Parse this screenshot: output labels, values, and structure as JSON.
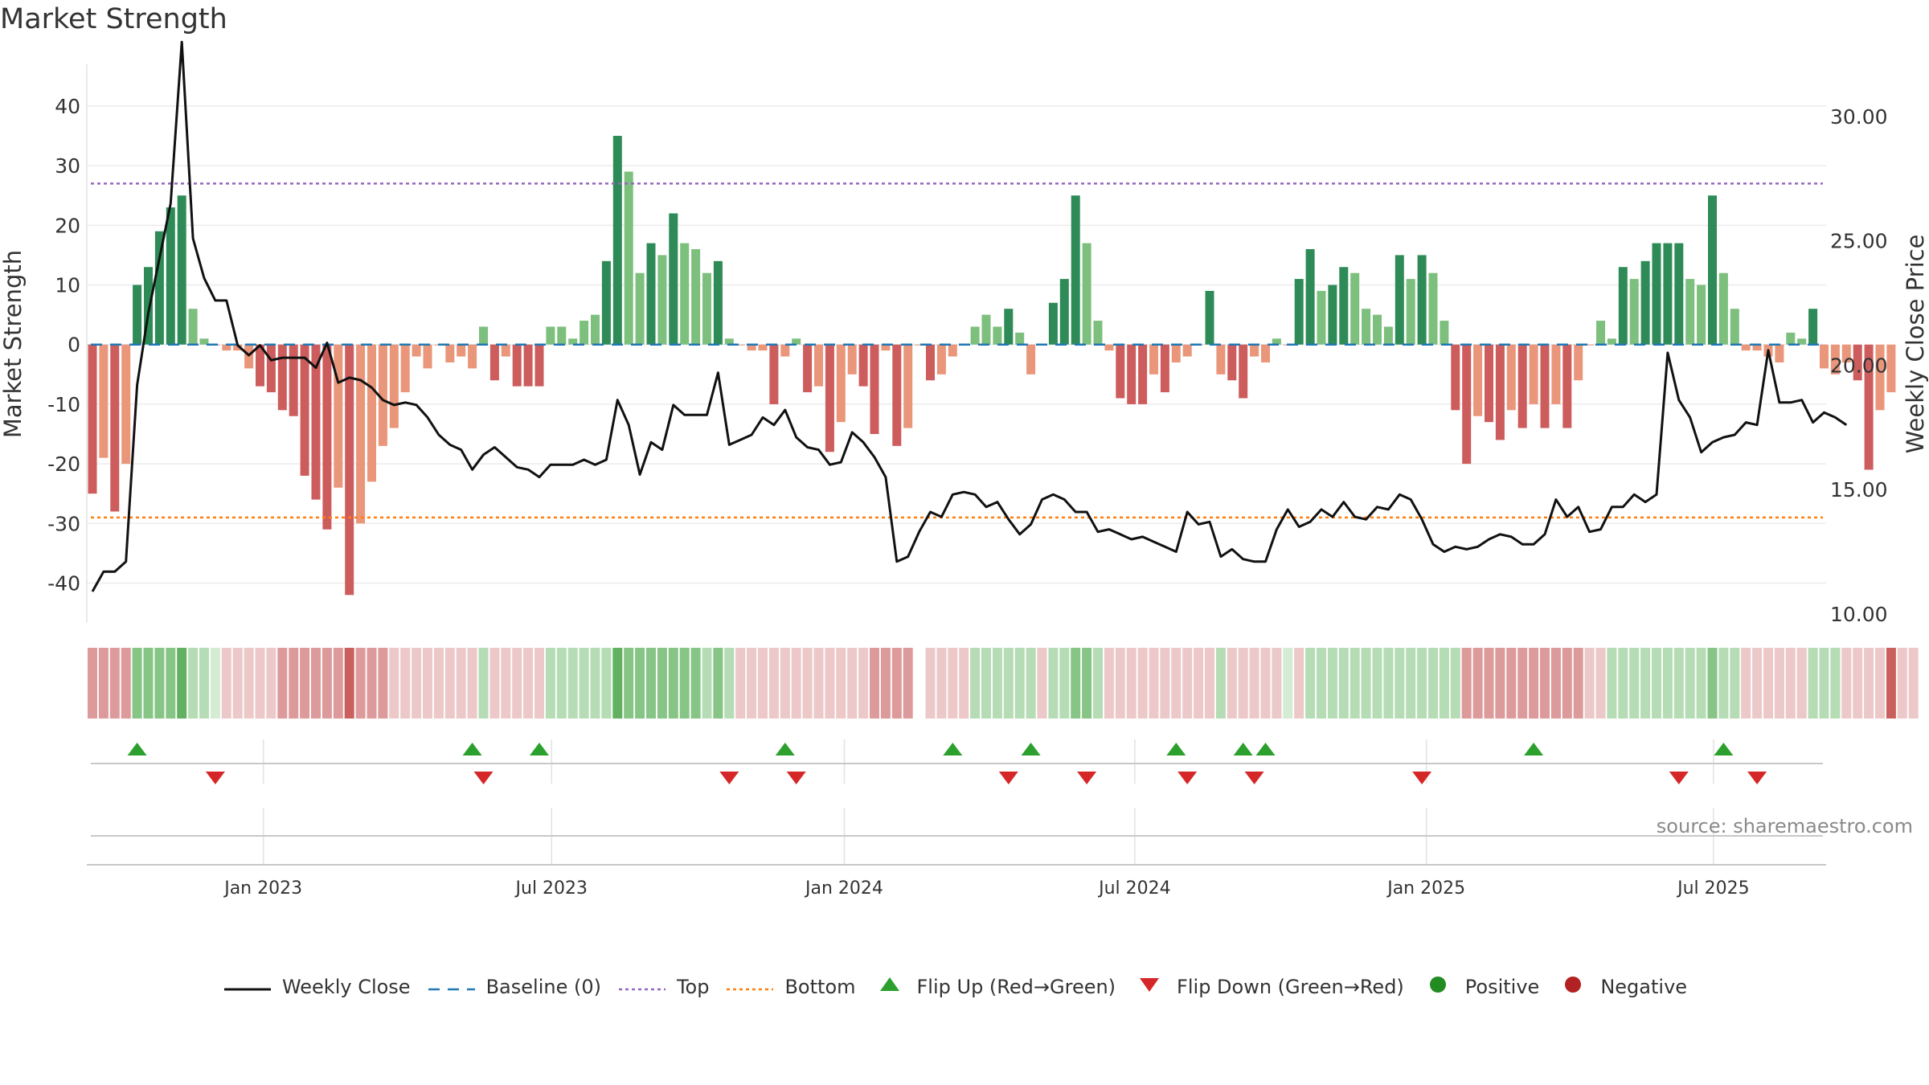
{
  "title": "Market Strength",
  "source": "source: sharemaestro.com",
  "colors": {
    "strong_green": "#2e8b57",
    "light_green": "#7dbf7d",
    "strong_red": "#cd5c5c",
    "light_red": "#e9967a",
    "close_line": "#111111",
    "baseline": "#1f77b4",
    "top": "#9467bd",
    "bottom": "#ff7f0e",
    "flip_up": "#2ca02c",
    "flip_down": "#d62728",
    "positive": "#228b22",
    "negative": "#b22222"
  },
  "chart_data": {
    "type": "bar+line",
    "title": "Market Strength",
    "ylabel_left": "Market Strength",
    "ylabel_right": "Weekly Close Price",
    "ylim_left": [
      -46,
      47
    ],
    "yticks_left": [
      "40",
      "30",
      "20",
      "10",
      "0",
      "-10",
      "-20",
      "-30",
      "-40"
    ],
    "ylim_right": [
      9.8,
      32.1
    ],
    "yticks_right": [
      "30.00",
      "25.00",
      "20.00",
      "15.00",
      "10.00"
    ],
    "x_start_week": "2022-09-19",
    "x_tick_labels": [
      "Jan 2023",
      "Jul 2023",
      "Jan 2024",
      "Jul 2024",
      "Jan 2025",
      "Jul 2025"
    ],
    "x_tick_weeks": [
      15.3,
      41.1,
      67.3,
      93.3,
      119.4,
      145.1
    ],
    "top_level": 27,
    "bottom_level": -29,
    "baseline": 0,
    "strength": [
      -25,
      -19,
      -28,
      -20,
      10,
      13,
      19,
      23,
      25,
      6,
      1,
      0,
      -1,
      -1,
      -4,
      -7,
      -8,
      -11,
      -12,
      -22,
      -26,
      -31,
      -24,
      -42,
      -30,
      -23,
      -17,
      -14,
      -8,
      -2,
      -4,
      0,
      -3,
      -2,
      -4,
      3,
      -6,
      -2,
      -7,
      -7,
      -7,
      3,
      3,
      1,
      4,
      5,
      14,
      35,
      29,
      12,
      17,
      15,
      22,
      17,
      16,
      12,
      14,
      1,
      0,
      -1,
      -1,
      -10,
      -2,
      1,
      -8,
      -7,
      -18,
      -13,
      -5,
      -7,
      -15,
      -1,
      -17,
      -14,
      0,
      -6,
      -5,
      -2,
      0,
      3,
      5,
      3,
      6,
      2,
      -5,
      0,
      7,
      11,
      25,
      17,
      4,
      -1,
      -9,
      -10,
      -10,
      -5,
      -8,
      -3,
      -2,
      0,
      9,
      -5,
      -6,
      -9,
      -2,
      -3,
      1,
      0,
      11,
      16,
      9,
      10,
      13,
      12,
      6,
      5,
      3,
      15,
      11,
      15,
      12,
      4,
      -11,
      -20,
      -12,
      -13,
      -16,
      -11,
      -14,
      -10,
      -14,
      -10,
      -14,
      -6,
      0,
      4,
      1,
      13,
      11,
      14,
      17,
      17,
      17,
      11,
      10,
      25,
      12,
      6,
      -1,
      -1,
      -2,
      -3,
      2,
      1,
      6,
      -4,
      -5,
      -3,
      -6,
      -21,
      -11,
      -8
    ],
    "weekly_close": [
      10.9,
      11.7,
      11.7,
      12.1,
      19.2,
      22.1,
      24.3,
      26.5,
      33.0,
      25.1,
      23.5,
      22.6,
      22.6,
      20.8,
      20.4,
      20.8,
      20.2,
      20.3,
      20.3,
      20.3,
      19.9,
      20.9,
      19.3,
      19.5,
      19.4,
      19.1,
      18.6,
      18.4,
      18.5,
      18.4,
      17.9,
      17.2,
      16.8,
      16.6,
      15.8,
      16.4,
      16.7,
      16.3,
      15.9,
      15.8,
      15.5,
      16.0,
      16.0,
      16.0,
      16.2,
      16.0,
      16.2,
      18.6,
      17.6,
      15.6,
      16.9,
      16.6,
      18.4,
      18.0,
      18.0,
      18.0,
      19.7,
      16.8,
      17.0,
      17.2,
      17.9,
      17.6,
      18.2,
      17.1,
      16.7,
      16.6,
      16.0,
      16.1,
      17.3,
      16.9,
      16.3,
      15.5,
      12.1,
      12.3,
      13.3,
      14.1,
      13.9,
      14.8,
      14.9,
      14.8,
      14.3,
      14.5,
      13.8,
      13.2,
      13.6,
      14.6,
      14.8,
      14.6,
      14.1,
      14.1,
      13.3,
      13.4,
      13.2,
      13.0,
      13.1,
      12.9,
      12.7,
      12.5,
      14.1,
      13.6,
      13.7,
      12.3,
      12.6,
      12.2,
      12.1,
      12.1,
      13.4,
      14.2,
      13.5,
      13.7,
      14.2,
      13.9,
      14.5,
      13.9,
      13.8,
      14.3,
      14.2,
      14.8,
      14.6,
      13.8,
      12.8,
      12.5,
      12.7,
      12.6,
      12.7,
      13.0,
      13.2,
      13.1,
      12.8,
      12.8,
      13.2,
      14.6,
      13.9,
      14.3,
      13.3,
      13.4,
      14.3,
      14.3,
      14.8,
      14.5,
      14.8,
      20.5,
      18.6,
      17.9,
      16.5,
      16.9,
      17.1,
      17.2,
      17.7,
      17.6,
      20.6,
      18.5,
      18.5,
      18.6,
      17.7,
      18.1,
      17.9,
      17.6
    ],
    "strip_shades": [
      2,
      2,
      2,
      2,
      -2,
      -2,
      -2,
      -2,
      -3,
      -1,
      -1,
      0,
      1,
      1,
      1,
      1,
      1,
      2,
      2,
      2,
      2,
      2,
      2,
      3,
      2,
      2,
      2,
      1,
      1,
      1,
      1,
      1,
      1,
      1,
      1,
      -1,
      1,
      1,
      1,
      1,
      1,
      -1,
      -1,
      -1,
      -1,
      -1,
      -1,
      -3,
      -2,
      -2,
      -2,
      -2,
      -2,
      -2,
      -2,
      -1,
      -2,
      -1,
      1,
      1,
      1,
      1,
      1,
      1,
      1,
      1,
      1,
      1,
      1,
      1,
      2,
      2,
      2,
      2,
      null,
      1,
      1,
      1,
      1,
      -1,
      -1,
      -1,
      -1,
      -1,
      -1,
      1,
      -1,
      -1,
      -2,
      -2,
      -1,
      1,
      1,
      1,
      1,
      1,
      1,
      1,
      1,
      1,
      1,
      -1,
      1,
      1,
      1,
      1,
      1,
      0,
      1,
      -1,
      -1,
      -1,
      -1,
      -1,
      -1,
      -1,
      -1,
      -1,
      -1,
      -1,
      -1,
      -1,
      -1,
      2,
      2,
      2,
      2,
      2,
      2,
      2,
      2,
      2,
      2,
      2,
      1,
      1,
      -1,
      -1,
      -1,
      -1,
      -1,
      -1,
      -1,
      -1,
      -1,
      -2,
      -1,
      -1,
      1,
      1,
      1,
      1,
      1,
      1,
      -1,
      -1,
      -1,
      1,
      1,
      1,
      1,
      3,
      1,
      1
    ],
    "flip_up_weeks": [
      4,
      34,
      40,
      62,
      77,
      84,
      97,
      103,
      105,
      129,
      146
    ],
    "flip_down_weeks": [
      11,
      35,
      57,
      63,
      82,
      89,
      98,
      104,
      119,
      142,
      149
    ],
    "legend": [
      "Weekly Close",
      "Baseline (0)",
      "Top",
      "Bottom",
      "Flip Up (Red→Green)",
      "Flip Down (Green→Red)",
      "Positive",
      "Negative"
    ]
  }
}
